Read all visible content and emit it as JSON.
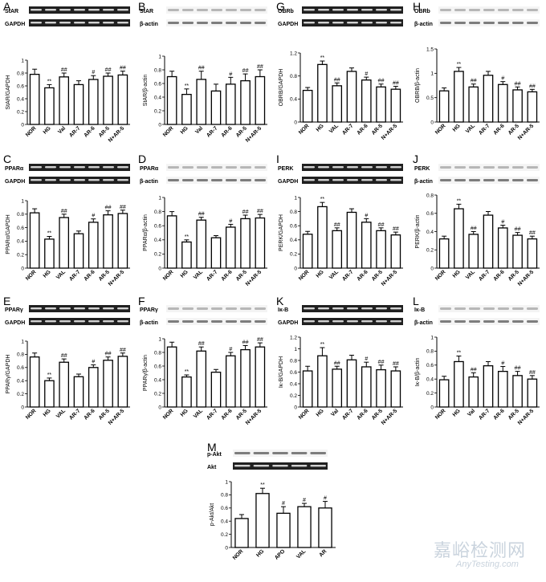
{
  "watermark": {
    "zh": "嘉峪检测网",
    "en": "AnyTesting.com"
  },
  "colors": {
    "ink": "#000000",
    "bar": "#ffffff",
    "blot_dark": "#202020",
    "blot_light": "#d8d8d8"
  },
  "chart_data": [
    {
      "panel": "A",
      "type": "bar",
      "ylabel": "StAR/GAPDH",
      "ylim": [
        0,
        1.0
      ],
      "yticks": [
        0,
        0.2,
        0.4,
        0.6,
        0.8,
        1.0
      ],
      "blot_labels": [
        "StAR",
        "GAPDH"
      ],
      "blot_style": "dark",
      "categories": [
        "NOR",
        "HG",
        "Val",
        "AR-7",
        "AR-6",
        "AR-5",
        "N+AR-5"
      ],
      "values": [
        0.78,
        0.57,
        0.74,
        0.62,
        0.7,
        0.75,
        0.77
      ],
      "errors": [
        0.08,
        0.05,
        0.06,
        0.06,
        0.06,
        0.05,
        0.06
      ],
      "marks": [
        "",
        "**",
        "##",
        "",
        "#",
        "##",
        "##"
      ]
    },
    {
      "panel": "B",
      "type": "bar",
      "ylabel": "StAR/β-actin",
      "ylim": [
        0,
        1.0
      ],
      "yticks": [
        0,
        0.2,
        0.4,
        0.6,
        0.8,
        1.0
      ],
      "blot_labels": [
        "StAR",
        "β-actin"
      ],
      "blot_style": "light",
      "categories": [
        "NOR",
        "HG",
        "Val",
        "AR-7",
        "AR-6",
        "AR-5",
        "N+AR-5"
      ],
      "values": [
        0.7,
        0.44,
        0.66,
        0.49,
        0.59,
        0.64,
        0.7
      ],
      "errors": [
        0.08,
        0.08,
        0.12,
        0.1,
        0.1,
        0.1,
        0.1
      ],
      "marks": [
        "",
        "**",
        "##",
        "",
        "#",
        "##",
        "##"
      ]
    },
    {
      "panel": "C",
      "type": "bar",
      "ylabel": "PPARα/GAPDH",
      "ylim": [
        0,
        1.0
      ],
      "yticks": [
        0,
        0.2,
        0.4,
        0.6,
        0.8,
        1.0
      ],
      "blot_labels": [
        "PPARα",
        "GAPDH"
      ],
      "blot_style": "dark",
      "categories": [
        "NOR",
        "HG",
        "VAL",
        "AR-7",
        "AR-6",
        "AR-5",
        "N+AR-5"
      ],
      "values": [
        0.82,
        0.43,
        0.75,
        0.51,
        0.68,
        0.79,
        0.81
      ],
      "errors": [
        0.06,
        0.04,
        0.05,
        0.04,
        0.05,
        0.06,
        0.05
      ],
      "marks": [
        "",
        "**",
        "##",
        "",
        "#",
        "##",
        "##"
      ]
    },
    {
      "panel": "D",
      "type": "bar",
      "ylabel": "PPARα/β-actin",
      "ylim": [
        0,
        1.0
      ],
      "yticks": [
        0,
        0.2,
        0.4,
        0.6,
        0.8,
        1.0
      ],
      "blot_labels": [
        "PPARα",
        "β-actin"
      ],
      "blot_style": "light",
      "categories": [
        "NOR",
        "HG",
        "VAL",
        "AR-7",
        "AR-6",
        "AR-5",
        "N+AR-5"
      ],
      "values": [
        0.74,
        0.37,
        0.68,
        0.43,
        0.58,
        0.7,
        0.71
      ],
      "errors": [
        0.06,
        0.03,
        0.04,
        0.03,
        0.04,
        0.05,
        0.05
      ],
      "marks": [
        "",
        "**",
        "##",
        "",
        "#",
        "##",
        "##"
      ]
    },
    {
      "panel": "E",
      "type": "bar",
      "ylabel": "PPARγ/GAPDH",
      "ylim": [
        0,
        1.0
      ],
      "yticks": [
        0,
        0.2,
        0.4,
        0.6,
        0.8,
        1.0
      ],
      "blot_labels": [
        "PPARγ",
        "GAPDH"
      ],
      "blot_style": "dark",
      "categories": [
        "NOR",
        "HG",
        "VAL",
        "AR-7",
        "AR-6",
        "AR-5",
        "N+AR-5"
      ],
      "values": [
        0.76,
        0.4,
        0.68,
        0.46,
        0.6,
        0.71,
        0.77
      ],
      "errors": [
        0.06,
        0.04,
        0.05,
        0.04,
        0.04,
        0.05,
        0.05
      ],
      "marks": [
        "",
        "**",
        "##",
        "",
        "#",
        "##",
        "##"
      ]
    },
    {
      "panel": "F",
      "type": "bar",
      "ylabel": "PPARγ/β-actin",
      "ylim": [
        0,
        1.0
      ],
      "yticks": [
        0,
        0.2,
        0.4,
        0.6,
        0.8,
        1.0
      ],
      "blot_labels": [
        "PPARγ",
        "β-actin"
      ],
      "blot_style": "light",
      "categories": [
        "NOR",
        "HG",
        "VAL",
        "AR-7",
        "AR-6",
        "AR-5",
        "N+AR-5"
      ],
      "values": [
        0.88,
        0.44,
        0.82,
        0.51,
        0.75,
        0.84,
        0.88
      ],
      "errors": [
        0.07,
        0.03,
        0.06,
        0.04,
        0.05,
        0.06,
        0.06
      ],
      "marks": [
        "",
        "**",
        "##",
        "",
        "#",
        "##",
        "##"
      ]
    },
    {
      "panel": "G",
      "type": "bar",
      "ylabel": "OBRB/GAPDH",
      "ylim": [
        0,
        1.2
      ],
      "yticks": [
        0,
        0.4,
        0.8,
        1.2
      ],
      "blot_labels": [
        "OBRb",
        "GAPDH"
      ],
      "blot_style": "dark",
      "categories": [
        "NOR",
        "HG",
        "VAL",
        "AR-7",
        "AR-6",
        "AR-5",
        "N+AR-5"
      ],
      "values": [
        0.55,
        1.0,
        0.63,
        0.88,
        0.73,
        0.61,
        0.57
      ],
      "errors": [
        0.05,
        0.06,
        0.05,
        0.06,
        0.05,
        0.05,
        0.05
      ],
      "marks": [
        "",
        "**",
        "##",
        "",
        "#",
        "##",
        "##"
      ]
    },
    {
      "panel": "H",
      "type": "bar",
      "ylabel": "OBRB/β-actin",
      "ylim": [
        0,
        1.5
      ],
      "yticks": [
        0,
        0.5,
        1.0,
        1.5
      ],
      "blot_labels": [
        "OBRb",
        "β-actin"
      ],
      "blot_style": "light",
      "categories": [
        "NOR",
        "HG",
        "VAL",
        "AR-7",
        "AR-6",
        "AR-5",
        "N+AR-5"
      ],
      "values": [
        0.64,
        1.04,
        0.72,
        0.96,
        0.77,
        0.66,
        0.62
      ],
      "errors": [
        0.06,
        0.08,
        0.06,
        0.08,
        0.06,
        0.06,
        0.05
      ],
      "marks": [
        "",
        "**",
        "##",
        "",
        "#",
        "##",
        "##"
      ]
    },
    {
      "panel": "I",
      "type": "bar",
      "ylabel": "PERK/GAPDH",
      "ylim": [
        0,
        1.0
      ],
      "yticks": [
        0,
        0.2,
        0.4,
        0.6,
        0.8,
        1.0
      ],
      "blot_labels": [
        "PERK",
        "GAPDH"
      ],
      "blot_style": "dark",
      "categories": [
        "NOR",
        "HG",
        "VAL",
        "AR-7",
        "AR-6",
        "AR-5",
        "N+AR-5"
      ],
      "values": [
        0.48,
        0.87,
        0.53,
        0.79,
        0.65,
        0.53,
        0.47
      ],
      "errors": [
        0.04,
        0.06,
        0.04,
        0.05,
        0.05,
        0.04,
        0.04
      ],
      "marks": [
        "",
        "**",
        "##",
        "",
        "#",
        "##",
        "##"
      ]
    },
    {
      "panel": "J",
      "type": "bar",
      "ylabel": "PERK/β-actin",
      "ylim": [
        0,
        0.8
      ],
      "yticks": [
        0,
        0.2,
        0.4,
        0.6,
        0.8
      ],
      "blot_labels": [
        "PERK",
        "β-actin"
      ],
      "blot_style": "light",
      "categories": [
        "NOR",
        "HG",
        "VAL",
        "AR-7",
        "AR-6",
        "AR-5",
        "N+AR-5"
      ],
      "values": [
        0.32,
        0.65,
        0.37,
        0.58,
        0.44,
        0.36,
        0.32
      ],
      "errors": [
        0.03,
        0.05,
        0.03,
        0.04,
        0.03,
        0.03,
        0.03
      ],
      "marks": [
        "",
        "**",
        "##",
        "",
        "#",
        "##",
        "##"
      ]
    },
    {
      "panel": "K",
      "type": "bar",
      "ylabel": "Iκ-B/GAPDH",
      "ylim": [
        0,
        1.2
      ],
      "yticks": [
        0,
        0.2,
        0.4,
        0.6,
        0.8,
        1.0,
        1.2
      ],
      "blot_labels": [
        "Iκ-B",
        "GAPDH"
      ],
      "blot_style": "dark",
      "categories": [
        "NOR",
        "HG",
        "Val",
        "AR-7",
        "AR-6",
        "AR-5",
        "N+AR-5"
      ],
      "values": [
        0.62,
        0.88,
        0.65,
        0.81,
        0.69,
        0.64,
        0.62
      ],
      "errors": [
        0.08,
        0.14,
        0.05,
        0.08,
        0.08,
        0.08,
        0.07
      ],
      "marks": [
        "",
        "**",
        "##",
        "",
        "#",
        "##",
        "##"
      ]
    },
    {
      "panel": "L",
      "type": "bar",
      "ylabel": "Iκ-B/β-actin",
      "ylim": [
        0,
        1.0
      ],
      "yticks": [
        0,
        0.2,
        0.4,
        0.6,
        0.8,
        1.0
      ],
      "blot_labels": [
        "Iκ-B",
        "β-actin"
      ],
      "blot_style": "light",
      "categories": [
        "NOR",
        "HG",
        "Val",
        "AR-7",
        "AR-6",
        "AR-5",
        "N+AR-5"
      ],
      "values": [
        0.39,
        0.65,
        0.43,
        0.59,
        0.51,
        0.45,
        0.4
      ],
      "errors": [
        0.05,
        0.08,
        0.06,
        0.06,
        0.07,
        0.06,
        0.05
      ],
      "marks": [
        "",
        "**",
        "##",
        "",
        "#",
        "##",
        "##"
      ]
    },
    {
      "panel": "M",
      "type": "bar",
      "ylabel": "p-Akt/Akt",
      "ylim": [
        0,
        1.0
      ],
      "yticks": [
        0,
        0.2,
        0.4,
        0.6,
        0.8,
        1.0
      ],
      "blot_labels": [
        "p-Akt",
        "Akt"
      ],
      "blot_style": "mixed",
      "categories": [
        "NOR",
        "HG",
        "APO",
        "VAL",
        "AR"
      ],
      "values": [
        0.44,
        0.82,
        0.52,
        0.62,
        0.6
      ],
      "errors": [
        0.06,
        0.08,
        0.1,
        0.05,
        0.1
      ],
      "marks": [
        "",
        "**",
        "#",
        "#",
        "#"
      ]
    }
  ]
}
